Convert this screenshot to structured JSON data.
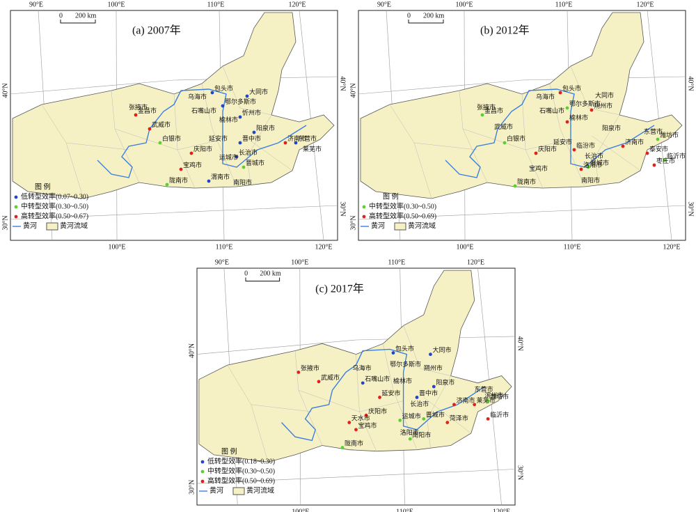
{
  "map_labels": {
    "lon_top": [
      "90°E",
      "100°E",
      "110°E",
      "120°E"
    ],
    "lon_bottom": [
      "100°E",
      "110°E",
      "120°E"
    ],
    "lat_left": [
      "40°N",
      "30°N"
    ],
    "lat_right": [
      "40°N",
      "30°N"
    ],
    "scale_zero": "0",
    "scale_length": "200 km",
    "legend_title": "图 例",
    "river": "黄河",
    "basin": "黄河流域"
  },
  "panels": [
    {
      "title": "(a) 2007年",
      "legend": [
        {
          "label": "低转型效率(0.07~0.30)",
          "color": "#2346c8",
          "cities": [
            "包头市",
            "鄂尔多斯市",
            "大同市",
            "忻州市",
            "阳泉市",
            "晋中市",
            "长治市",
            "渭南市",
            "东营市"
          ]
        },
        {
          "label": "中转型效率(0.30~0.50)",
          "color": "#5bd12f",
          "cities": [
            "白银市",
            "晋城市",
            "陇南市"
          ]
        },
        {
          "label": "高转型效率(0.50~0.67)",
          "color": "#e0201b",
          "cities": [
            "金昌市",
            "武威市",
            "庆阳市",
            "宝鸡市",
            "济南市"
          ]
        }
      ],
      "other_cities": [
        "张掖市",
        "乌海市",
        "石嘴山市",
        "榆林市",
        "延安市",
        "运城市",
        "南阳市",
        "莱芜市"
      ]
    },
    {
      "title": "(b) 2012年",
      "legend": [
        {
          "label": "中转型效率(0.30~0.50)",
          "color": "#5bd12f",
          "cities": [
            "金昌市",
            "白银市",
            "鄂尔多斯市",
            "陇南市",
            "潍坊市",
            "临沂市",
            "晋城市"
          ]
        },
        {
          "label": "高转型效率(0.50~0.69)",
          "color": "#e0201b",
          "cities": [
            "包头市",
            "朔州市",
            "榆林市",
            "庆阳市",
            "临汾市",
            "济南市",
            "洛阳市",
            "枣庄市",
            "泰安市"
          ]
        }
      ],
      "other_cities": [
        "张掖市",
        "武威市",
        "乌海市",
        "石嘴山市",
        "大同市",
        "阳泉市",
        "长治市",
        "延安市",
        "宝鸡市",
        "南阳市",
        "东营市"
      ]
    },
    {
      "title": "(c) 2017年",
      "legend": [
        {
          "label": "低转型效率(0.18~0.30)",
          "color": "#2346c8",
          "cities": [
            "包头市",
            "大同市",
            "阳泉市",
            "晋中市",
            "石嘴山市"
          ]
        },
        {
          "label": "中转型效率(0.30~0.50)",
          "color": "#5bd12f",
          "cities": [
            "陇南市",
            "运城市",
            "晋城市",
            "南阳市",
            "潍坊市"
          ]
        },
        {
          "label": "高转型效率(0.50~0.69)",
          "color": "#e0201b",
          "cities": [
            "张掖市",
            "武威市",
            "延安市",
            "庆阳市",
            "天水市",
            "宝鸡市",
            "济南市",
            "莱芜市",
            "临沂市",
            "菏泽市"
          ]
        }
      ],
      "other_cities": [
        "乌海市",
        "鄂尔多斯市",
        "榆林市",
        "朔州市",
        "长治市",
        "洛阳市",
        "东营市",
        "滨州市"
      ]
    }
  ]
}
